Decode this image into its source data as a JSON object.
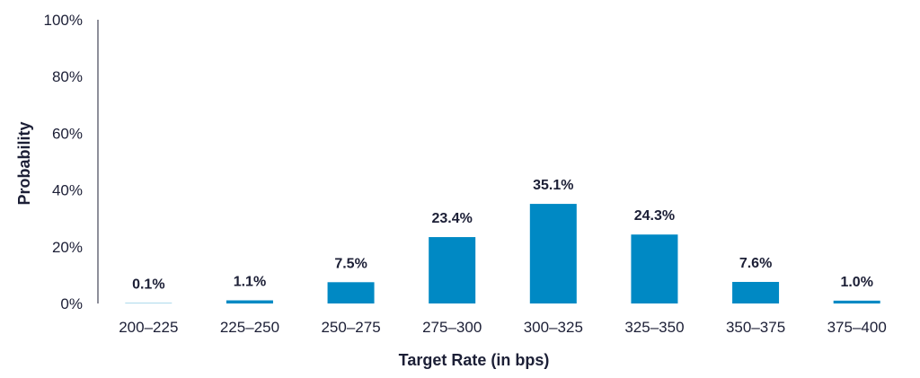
{
  "chart_data": {
    "type": "bar",
    "categories": [
      "200–225",
      "225–250",
      "250–275",
      "275–300",
      "300–325",
      "325–350",
      "350–375",
      "375–400"
    ],
    "values": [
      0.1,
      1.1,
      7.5,
      23.4,
      35.1,
      24.3,
      7.6,
      1.0
    ],
    "data_labels": [
      "0.1%",
      "1.1%",
      "7.5%",
      "23.4%",
      "35.1%",
      "24.3%",
      "7.6%",
      "1.0%"
    ],
    "xlabel": "Target Rate (in bps)",
    "ylabel": "Probability",
    "ylim": [
      0,
      100
    ],
    "yticks": [
      0,
      20,
      40,
      60,
      80,
      100
    ],
    "ytick_labels": [
      "0%",
      "20%",
      "40%",
      "60%",
      "80%",
      "100%"
    ],
    "grid": false,
    "legend": "none",
    "bar_color": "#0089c4",
    "text_color": "#1c1f36"
  }
}
